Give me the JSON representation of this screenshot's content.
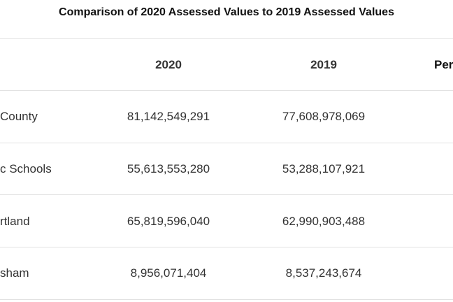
{
  "table": {
    "title": "Comparison of 2020 Assessed Values to 2019 Assessed Values",
    "headers": {
      "label": "",
      "col_2020": "2020",
      "col_2019": "2019",
      "col_percent": "Per"
    },
    "rows": [
      {
        "label": "County",
        "value_2020": "81,142,549,291",
        "value_2019": "77,608,978,069"
      },
      {
        "label": "c Schools",
        "value_2020": "55,613,553,280",
        "value_2019": "53,288,107,921"
      },
      {
        "label": "rtland",
        "value_2020": "65,819,596,040",
        "value_2019": "62,990,903,488"
      },
      {
        "label": "sham",
        "value_2020": "8,956,071,404",
        "value_2019": "8,537,243,674"
      }
    ]
  }
}
